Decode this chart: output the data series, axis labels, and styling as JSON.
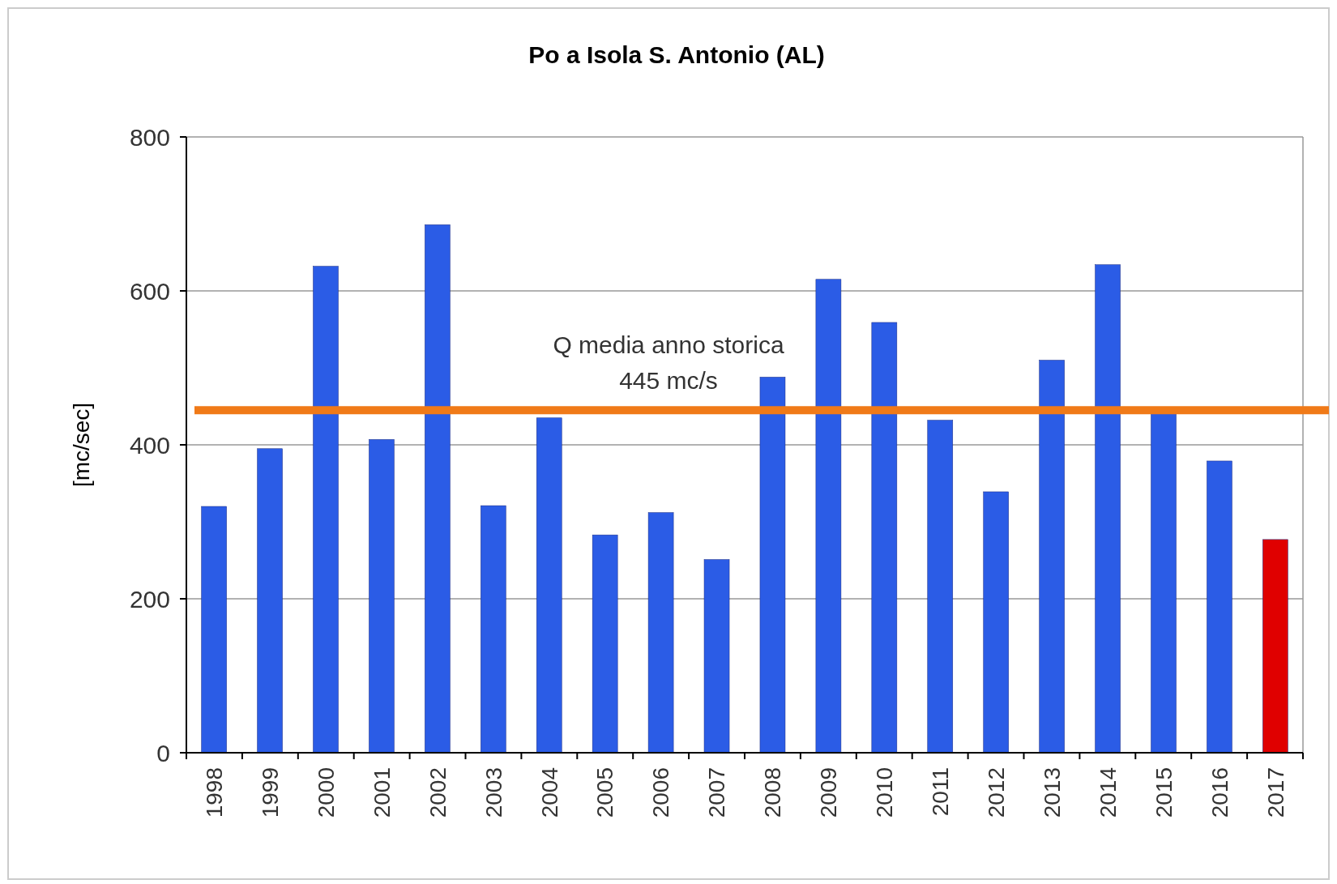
{
  "chart_data": {
    "type": "bar",
    "title": "Po a Isola S. Antonio (AL)",
    "ylabel": "[mc/sec]",
    "categories": [
      "1998",
      "1999",
      "2000",
      "2001",
      "2002",
      "2003",
      "2004",
      "2005",
      "2006",
      "2007",
      "2008",
      "2009",
      "2010",
      "2011",
      "2012",
      "2013",
      "2014",
      "2015",
      "2016",
      "2017"
    ],
    "values": [
      320,
      395,
      632,
      407,
      686,
      321,
      435,
      283,
      312,
      251,
      488,
      615,
      559,
      432,
      339,
      510,
      634,
      443,
      379,
      277
    ],
    "colors": [
      "#2b5ce6",
      "#2b5ce6",
      "#2b5ce6",
      "#2b5ce6",
      "#2b5ce6",
      "#2b5ce6",
      "#2b5ce6",
      "#2b5ce6",
      "#2b5ce6",
      "#2b5ce6",
      "#2b5ce6",
      "#2b5ce6",
      "#2b5ce6",
      "#2b5ce6",
      "#2b5ce6",
      "#2b5ce6",
      "#2b5ce6",
      "#2b5ce6",
      "#2b5ce6",
      "#e00000"
    ],
    "ylim": [
      0,
      800
    ],
    "yticks": [
      0,
      200,
      400,
      600,
      800
    ],
    "grid": "y",
    "ref_lines": [
      {
        "axis": "y",
        "value": 445,
        "label": "Q media anno storica\n445 mc/s",
        "color": "#f07a18"
      }
    ]
  }
}
